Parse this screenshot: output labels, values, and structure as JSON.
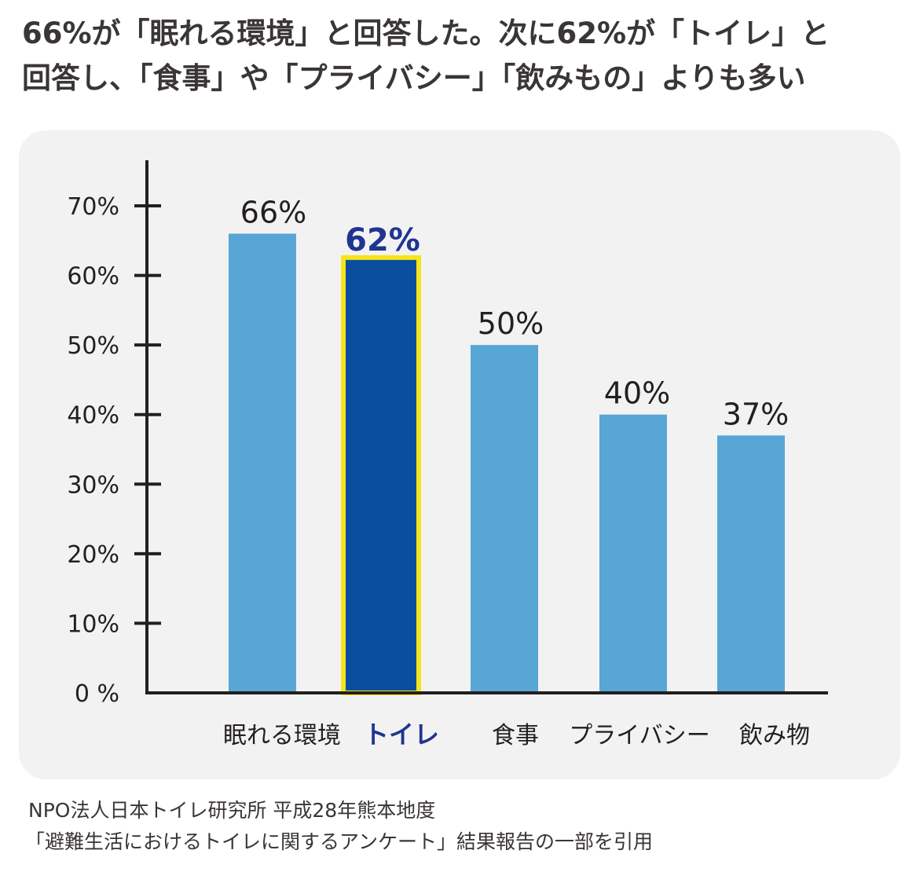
{
  "headline": {
    "line1": "66%が「眠れる環境」と回答した。次に62%が「トイレ」と",
    "line2": "回答し、「食事」や「プライバシー」「飲みもの」よりも多い"
  },
  "source": {
    "line1": "NPO法人日本トイレ研究所 平成28年熊本地度",
    "line2": "「避難生活におけるトイレに関するアンケート」結果報告の一部を引用"
  },
  "chart_data": {
    "type": "bar",
    "categories": [
      "眠れる環境",
      "トイレ",
      "食事",
      "プライバシー",
      "飲み物"
    ],
    "values": [
      66,
      62,
      50,
      40,
      37
    ],
    "data_labels": [
      "66%",
      "62%",
      "50%",
      "40%",
      "37%"
    ],
    "highlight_index": 1,
    "ylim": [
      0,
      70
    ],
    "yticks": [
      0,
      10,
      20,
      30,
      40,
      50,
      60,
      70
    ],
    "ytick_labels": [
      "0 %",
      "10%",
      "20%",
      "30%",
      "40%",
      "50%",
      "60%",
      "70%"
    ],
    "grid": false,
    "colors": {
      "bar": "#58a6d6",
      "highlight_bar": "#0a4f9f",
      "highlight_border": "#f7e51a",
      "highlight_text": "#1f3590",
      "axis": "#231f20"
    }
  }
}
